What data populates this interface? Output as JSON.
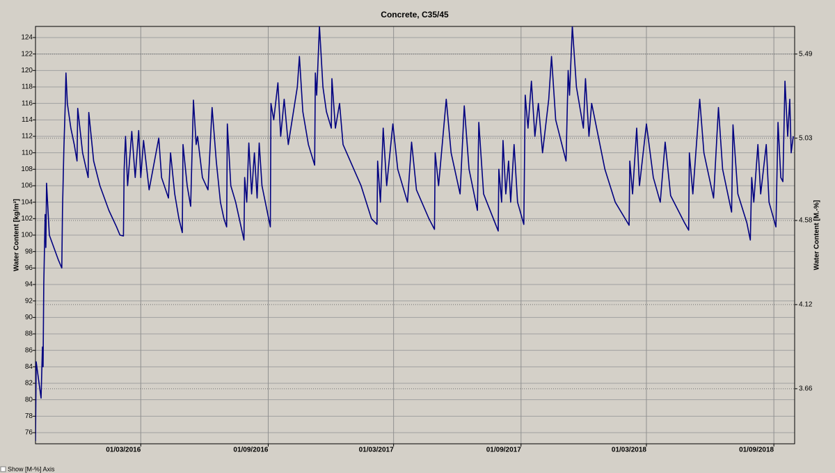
{
  "chart_data": {
    "type": "line",
    "title": "Concrete, C35/45",
    "y_label": "Water Content [kg/m³]",
    "y2_label": "Water Content [M.-%]",
    "checkbox_label": "Show [M-%] Axis",
    "color": "#000080",
    "grid": true,
    "xlim": [
      "2015-10-01",
      "2018-10-01"
    ],
    "xticks": [
      {
        "value": "2016-03-01",
        "label": "01/03/2016"
      },
      {
        "value": "2016-09-01",
        "label": "01/09/2016"
      },
      {
        "value": "2017-03-01",
        "label": "01/03/2017"
      },
      {
        "value": "2017-09-01",
        "label": "01/09/2017"
      },
      {
        "value": "2018-03-01",
        "label": "01/03/2018"
      },
      {
        "value": "2018-09-01",
        "label": "01/09/2018"
      }
    ],
    "ylim": [
      74.65,
      125.35
    ],
    "yticks": [
      76,
      78,
      80,
      82,
      84,
      86,
      88,
      90,
      92,
      94,
      96,
      98,
      100,
      102,
      104,
      106,
      108,
      110,
      112,
      114,
      116,
      118,
      120,
      122,
      124
    ],
    "y2lim": [
      3.359,
      5.641
    ],
    "y2ticks": [
      3.66,
      4.12,
      4.58,
      5.03,
      5.49
    ],
    "x": [
      "2015-10-01",
      "2015-10-02",
      "2015-10-09",
      "2015-10-11",
      "2015-10-12",
      "2015-10-13",
      "2015-10-15",
      "2015-10-16",
      "2015-10-17",
      "2015-10-21",
      "2015-11-03",
      "2015-11-08",
      "2015-11-09",
      "2015-11-11",
      "2015-11-13",
      "2015-11-14",
      "2015-11-16",
      "2015-11-21",
      "2015-11-26",
      "2015-11-30",
      "2015-12-01",
      "2015-12-08",
      "2015-12-16",
      "2015-12-17",
      "2015-12-24",
      "2016-01-02",
      "2016-01-15",
      "2016-01-26",
      "2016-01-31",
      "2016-02-05",
      "2016-02-06",
      "2016-02-08",
      "2016-02-11",
      "2016-02-17",
      "2016-02-22",
      "2016-02-27",
      "2016-03-01",
      "2016-03-05",
      "2016-03-13",
      "2016-03-27",
      "2016-03-31",
      "2016-04-10",
      "2016-04-13",
      "2016-04-19",
      "2016-04-25",
      "2016-04-30",
      "2016-05-01",
      "2016-05-07",
      "2016-05-12",
      "2016-05-16",
      "2016-05-20",
      "2016-05-22",
      "2016-05-29",
      "2016-06-06",
      "2016-06-12",
      "2016-06-18",
      "2016-06-24",
      "2016-06-29",
      "2016-07-03",
      "2016-07-04",
      "2016-07-09",
      "2016-07-16",
      "2016-07-28",
      "2016-07-29",
      "2016-08-01",
      "2016-08-04",
      "2016-08-08",
      "2016-08-12",
      "2016-08-16",
      "2016-08-19",
      "2016-08-23",
      "2016-09-04",
      "2016-09-05",
      "2016-09-09",
      "2016-09-15",
      "2016-09-19",
      "2016-09-24",
      "2016-09-30",
      "2016-10-13",
      "2016-10-16",
      "2016-10-21",
      "2016-10-29",
      "2016-11-07",
      "2016-11-08",
      "2016-11-10",
      "2016-11-14",
      "2016-11-19",
      "2016-11-24",
      "2016-12-01",
      "2016-12-02",
      "2016-12-07",
      "2016-12-13",
      "2016-12-18",
      "2017-01-13",
      "2017-01-28",
      "2017-02-05",
      "2017-02-06",
      "2017-02-10",
      "2017-02-14",
      "2017-02-19",
      "2017-02-28",
      "2017-03-07",
      "2017-03-21",
      "2017-03-27",
      "2017-04-03",
      "2017-04-21",
      "2017-04-29",
      "2017-04-30",
      "2017-05-05",
      "2017-05-16",
      "2017-05-23",
      "2017-06-05",
      "2017-06-11",
      "2017-06-18",
      "2017-06-30",
      "2017-07-02",
      "2017-07-09",
      "2017-07-30",
      "2017-07-31",
      "2017-08-04",
      "2017-08-06",
      "2017-08-10",
      "2017-08-14",
      "2017-08-17",
      "2017-08-22",
      "2017-08-27",
      "2017-09-05",
      "2017-09-07",
      "2017-09-11",
      "2017-09-16",
      "2017-09-21",
      "2017-09-26",
      "2017-10-02",
      "2017-10-11",
      "2017-10-15",
      "2017-10-21",
      "2017-11-05",
      "2017-11-08",
      "2017-11-10",
      "2017-11-14",
      "2017-11-20",
      "2017-11-30",
      "2017-12-03",
      "2017-12-08",
      "2017-12-12",
      "2017-12-31",
      "2018-01-15",
      "2018-02-04",
      "2018-02-05",
      "2018-02-09",
      "2018-02-15",
      "2018-02-19",
      "2018-03-01",
      "2018-03-11",
      "2018-03-21",
      "2018-03-28",
      "2018-04-05",
      "2018-04-25",
      "2018-05-01",
      "2018-05-02",
      "2018-05-07",
      "2018-05-17",
      "2018-05-23",
      "2018-06-06",
      "2018-06-13",
      "2018-06-19",
      "2018-07-02",
      "2018-07-04",
      "2018-07-11",
      "2018-07-24",
      "2018-07-29",
      "2018-07-31",
      "2018-08-03",
      "2018-08-09",
      "2018-08-13",
      "2018-08-21",
      "2018-08-25",
      "2018-09-04",
      "2018-09-07",
      "2018-09-11",
      "2018-09-14",
      "2018-09-17",
      "2018-09-21",
      "2018-09-24",
      "2018-09-26",
      "2018-09-29"
    ],
    "values": [
      75.0,
      84.6,
      80.2,
      86.4,
      84.0,
      94,
      102.5,
      98.5,
      106.3,
      100,
      97,
      96,
      103,
      110.5,
      116,
      119.7,
      116,
      113,
      111,
      109,
      115.4,
      110,
      107,
      114.9,
      109,
      106,
      103,
      101,
      100,
      99.9,
      108,
      112,
      106,
      112.6,
      107,
      112.7,
      107,
      111.5,
      105.5,
      111.8,
      107,
      104.5,
      110,
      105,
      102,
      100.3,
      111,
      106,
      103.5,
      116.4,
      111,
      112,
      107,
      105.5,
      115.5,
      109,
      104,
      102,
      101,
      113.5,
      106,
      104,
      99.4,
      107,
      104,
      111.2,
      105,
      110,
      104.5,
      111.2,
      106,
      101,
      116,
      114,
      118.5,
      112,
      116.5,
      111,
      118,
      121.7,
      115,
      111,
      108.5,
      119.7,
      117,
      125.4,
      118,
      115,
      113,
      119,
      113,
      116,
      111,
      106,
      102,
      101.3,
      109,
      104,
      113,
      106,
      113.5,
      108,
      104,
      111.3,
      105.5,
      102,
      100.7,
      110,
      106,
      116.5,
      110,
      105,
      115.7,
      108,
      103,
      113.7,
      105,
      100.5,
      108,
      104,
      111.5,
      105,
      109,
      104,
      111,
      104,
      101.3,
      117,
      113,
      118.7,
      112,
      116,
      110,
      116.5,
      121.7,
      114,
      109,
      120,
      117,
      125.4,
      118,
      113,
      119,
      112,
      116,
      108,
      104,
      101.2,
      109,
      105,
      113,
      106,
      113.5,
      107,
      104,
      111.3,
      104.8,
      101.5,
      100.6,
      110,
      105,
      116.5,
      110,
      104.5,
      115.5,
      108,
      102.8,
      113.4,
      105,
      101.5,
      99.4,
      107,
      104,
      111,
      105,
      111,
      104,
      101,
      113.7,
      107,
      106.5,
      118.7,
      112,
      116.5,
      110,
      112
    ]
  }
}
